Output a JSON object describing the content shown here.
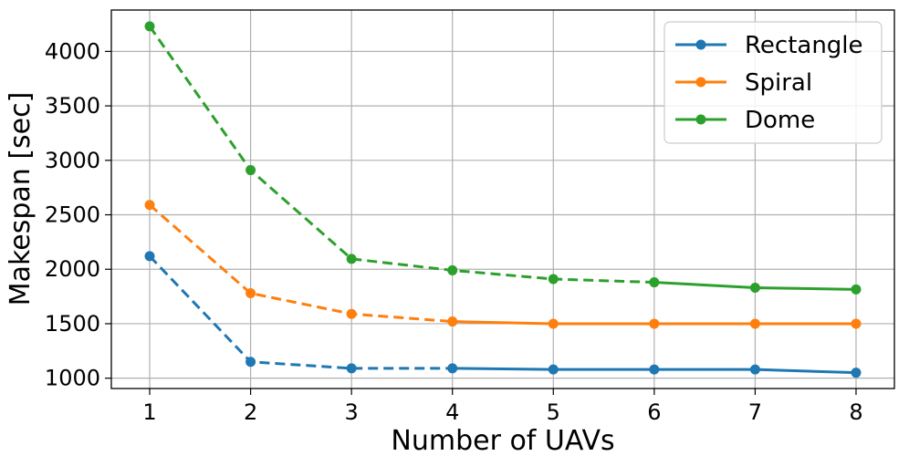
{
  "chart_data": {
    "type": "line",
    "title": "",
    "xlabel": "Number of UAVs",
    "ylabel": "Makespan [sec]",
    "x": [
      1,
      2,
      3,
      4,
      5,
      6,
      7,
      8
    ],
    "x_ticks": [
      "1",
      "2",
      "3",
      "4",
      "5",
      "6",
      "7",
      "8"
    ],
    "y_ticks": [
      "1000",
      "1500",
      "2000",
      "2500",
      "3000",
      "3500",
      "4000"
    ],
    "xlim": [
      0.62,
      8.38
    ],
    "ylim": [
      905,
      4380
    ],
    "grid": true,
    "legend_position": "top-right",
    "dashed_until_x": 4,
    "dashed_until_x_dome": 6,
    "series": [
      {
        "name": "Rectangle",
        "color": "#1f77b4",
        "values": [
          2120,
          1150,
          1090,
          1090,
          1080,
          1080,
          1080,
          1050
        ]
      },
      {
        "name": "Spiral",
        "color": "#ff7f0e",
        "values": [
          2590,
          1780,
          1590,
          1520,
          1500,
          1500,
          1500,
          1500
        ]
      },
      {
        "name": "Dome",
        "color": "#2ca02c",
        "values": [
          4230,
          2910,
          2095,
          1990,
          1910,
          1880,
          1830,
          1815
        ]
      }
    ]
  }
}
